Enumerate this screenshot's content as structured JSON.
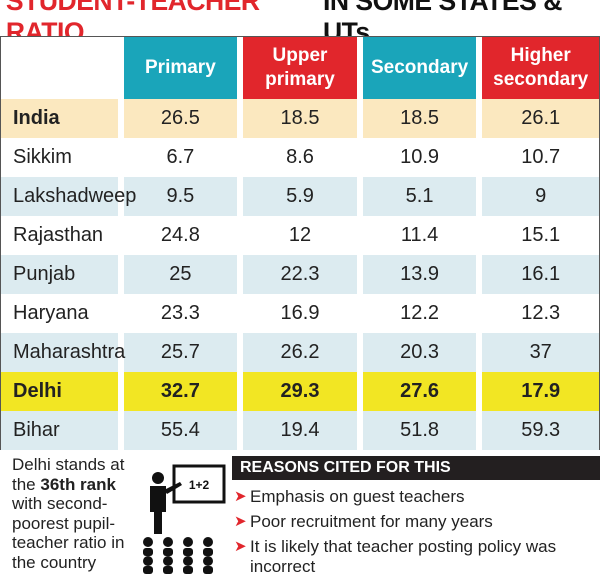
{
  "title": {
    "red_part": "STUDENT-TEACHER RATIO",
    "black_part": "IN SOME STATES & UTs"
  },
  "colors": {
    "teal": "#1aa5ba",
    "red": "#e1262c",
    "india_row": "#fbe8bf",
    "delhi_row": "#f2e623",
    "alt_row": "#dcebf0"
  },
  "chart_data": {
    "type": "table",
    "title": "STUDENT-TEACHER RATIO IN SOME STATES & UTs",
    "columns": [
      "Primary",
      "Upper primary",
      "Secondary",
      "Higher secondary"
    ],
    "rows": [
      {
        "state": "India",
        "values": [
          "26.5",
          "18.5",
          "18.5",
          "26.1"
        ]
      },
      {
        "state": "Sikkim",
        "values": [
          "6.7",
          "8.6",
          "10.9",
          "10.7"
        ]
      },
      {
        "state": "Lakshadweep",
        "values": [
          "9.5",
          "5.9",
          "5.1",
          "9"
        ]
      },
      {
        "state": "Rajasthan",
        "values": [
          "24.8",
          "12",
          "11.4",
          "15.1"
        ]
      },
      {
        "state": "Punjab",
        "values": [
          "25",
          "22.3",
          "13.9",
          "16.1"
        ]
      },
      {
        "state": "Haryana",
        "values": [
          "23.3",
          "16.9",
          "12.2",
          "12.3"
        ]
      },
      {
        "state": "Maharashtra",
        "values": [
          "25.7",
          "26.2",
          "20.3",
          "37"
        ]
      },
      {
        "state": "Delhi",
        "values": [
          "32.7",
          "29.3",
          "27.6",
          "17.9"
        ]
      },
      {
        "state": "Bihar",
        "values": [
          "55.4",
          "19.4",
          "51.8",
          "59.3"
        ]
      }
    ]
  },
  "header": {
    "col1_line1": "Primary",
    "col1_line2": "",
    "col2_line1": "Upper",
    "col2_line2": "primary",
    "col3_line1": "Secondary",
    "col3_line2": "",
    "col4_line1": "Higher",
    "col4_line2": "secondary"
  },
  "note": {
    "prefix": "Delhi stands at the",
    "rank": "36th rank",
    "suffix": "with second-poorest pupil-teacher ratio in the country"
  },
  "icon": {
    "name": "teacher-classroom-icon",
    "board_text": "1+2"
  },
  "reasons": {
    "heading": "REASONS CITED FOR THIS",
    "items": [
      "Emphasis on guest teachers",
      "Poor recruitment for many years",
      "It is likely that teacher posting policy was incorrect"
    ]
  }
}
